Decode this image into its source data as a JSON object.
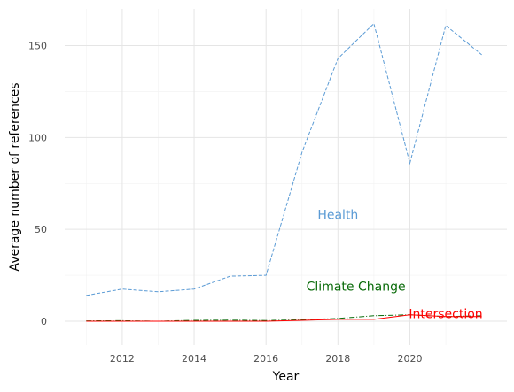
{
  "chart_data": {
    "type": "line",
    "xlabel": "Year",
    "ylabel": "Average number of references",
    "xlim": [
      2010.4,
      2022.7
    ],
    "ylim": [
      -13,
      170
    ],
    "xticks": [
      2012,
      2014,
      2016,
      2018,
      2020
    ],
    "yticks": [
      0,
      50,
      100,
      150
    ],
    "x": [
      2011,
      2012,
      2013,
      2014,
      2015,
      2016,
      2017,
      2018,
      2019,
      2020,
      2021,
      2022
    ],
    "grid": true,
    "legend": "none",
    "series": [
      {
        "name": "Health",
        "color": "#5b9bd5",
        "dash": "dashed",
        "values": [
          14,
          17.5,
          16,
          17.5,
          24.5,
          25,
          92,
          143,
          162,
          86,
          161,
          145
        ],
        "label_pos": [
          2018,
          58
        ]
      },
      {
        "name": "Climate Change",
        "color": "#0a6b0a",
        "dash": "dashdot",
        "values": [
          0.2,
          0.3,
          0,
          0.5,
          0.6,
          0.4,
          0.8,
          1.5,
          3,
          3.5,
          2.5,
          3
        ],
        "label_pos": [
          2018.5,
          19
        ]
      },
      {
        "name": "Intersection",
        "color": "#ff0000",
        "dash": "solid",
        "values": [
          0,
          0,
          0,
          0,
          0,
          0,
          0.5,
          1,
          1,
          3.5,
          2.5,
          2.5
        ],
        "label_pos": [
          2021,
          4
        ]
      }
    ]
  }
}
